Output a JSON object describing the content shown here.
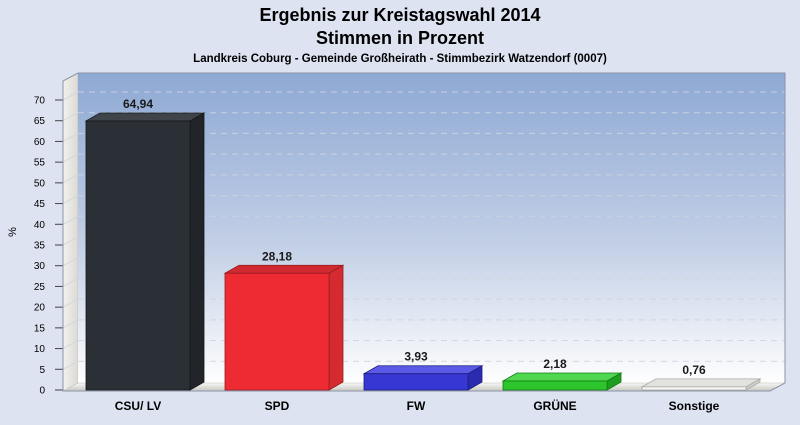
{
  "header": {
    "title_line1": "Ergebnis zur Kreistagswahl 2014",
    "title_line2": "Stimmen in Prozent",
    "subtitle": "Landkreis Coburg - Gemeinde Großheirath - Stimmbezirk Watzendorf (0007)"
  },
  "chart_data": {
    "type": "bar",
    "style": "3d-column",
    "categories": [
      "CSU/ LV",
      "SPD",
      "FW",
      "GRÜNE",
      "Sonstige"
    ],
    "values": [
      64.94,
      28.18,
      3.93,
      2.18,
      0.76
    ],
    "value_labels": [
      "64,94",
      "28,18",
      "3,93",
      "2,18",
      "0,76"
    ],
    "ylabel": "%",
    "ylim": [
      0,
      70
    ],
    "ytick_step": 5,
    "yticks": [
      "0",
      "5",
      "10",
      "15",
      "20",
      "25",
      "30",
      "35",
      "40",
      "45",
      "50",
      "55",
      "60",
      "65",
      "70"
    ],
    "grid": "horizontal-dashed",
    "legend": "none",
    "bar_colors": [
      {
        "name": "csu-lv",
        "front": "#2b3036",
        "top": "#3f444b",
        "side": "#212529",
        "edge": "#14171a"
      },
      {
        "name": "spd",
        "front": "#ee2b33",
        "top": "#cf2a30",
        "side": "#d42a30",
        "edge": "#961c20"
      },
      {
        "name": "fw",
        "front": "#3737d3",
        "top": "#5a5ae6",
        "side": "#2b2bb0",
        "edge": "#1d1d80"
      },
      {
        "name": "gruene",
        "front": "#2cc52c",
        "top": "#4fd84f",
        "side": "#1f9e1f",
        "edge": "#157a15"
      },
      {
        "name": "sonstige",
        "front": "#f4f4f2",
        "top": "#e2e2de",
        "side": "#cfcfcb",
        "edge": "#a9a9a5"
      }
    ]
  },
  "colors": {
    "page_background": "#dde3f1",
    "plot_gradient_top": "#8ea9d4",
    "plot_gradient_mid": "#c2cfe6",
    "plot_gradient_bottom": "#fefefe",
    "gridline": "#ced4de",
    "wall_light": "#f2f1ee",
    "wall_dark": "#dbdad5",
    "floor_back": "#f7f7f5",
    "floor_front": "#c6c6c2",
    "frame_border": "#8b93a6",
    "tick": "#444444"
  }
}
